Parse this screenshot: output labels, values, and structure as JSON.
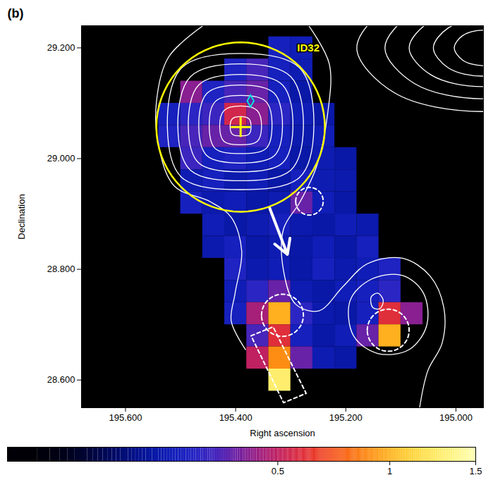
{
  "chart_data": {
    "type": "heatmap",
    "title": "(b)",
    "x_label": "Right ascension",
    "y_label": "Declination",
    "xlim": [
      195.68,
      194.95
    ],
    "ylim": [
      28.55,
      29.24
    ],
    "xticks": [
      {
        "value": 195.6,
        "label": "195.600"
      },
      {
        "value": 195.4,
        "label": "195.400"
      },
      {
        "value": 195.2,
        "label": "195.200"
      },
      {
        "value": 195.0,
        "label": "195.000"
      }
    ],
    "yticks": [
      {
        "value": 28.6,
        "label": "28.600"
      },
      {
        "value": 28.8,
        "label": "28.800"
      },
      {
        "value": 29.0,
        "label": "29.000"
      },
      {
        "value": 29.2,
        "label": "29.200"
      }
    ],
    "colorbar": {
      "range": [
        0,
        1.5
      ],
      "ticks": [
        0.5,
        1,
        1.5
      ],
      "colors": [
        "#000000",
        "#000010",
        "#0010a0",
        "#2030e0",
        "#d01060",
        "#ff5000",
        "#ffe020",
        "#ffffb0"
      ]
    },
    "cells": [
      [
        195.32,
        29.2,
        0.2
      ],
      [
        195.28,
        29.2,
        0.18
      ],
      [
        195.4,
        29.16,
        0.22
      ],
      [
        195.36,
        29.16,
        0.3
      ],
      [
        195.32,
        29.16,
        0.2
      ],
      [
        195.28,
        29.16,
        0.17
      ],
      [
        195.48,
        29.12,
        0.4
      ],
      [
        195.44,
        29.12,
        0.22
      ],
      [
        195.4,
        29.12,
        0.3
      ],
      [
        195.36,
        29.12,
        0.35
      ],
      [
        195.32,
        29.12,
        0.2
      ],
      [
        195.28,
        29.12,
        0.15
      ],
      [
        195.52,
        29.08,
        0.2
      ],
      [
        195.48,
        29.08,
        0.25
      ],
      [
        195.44,
        29.08,
        0.28
      ],
      [
        195.4,
        29.08,
        0.55
      ],
      [
        195.36,
        29.08,
        0.4
      ],
      [
        195.32,
        29.08,
        0.25
      ],
      [
        195.28,
        29.08,
        0.18
      ],
      [
        195.24,
        29.08,
        0.15
      ],
      [
        195.52,
        29.04,
        0.22
      ],
      [
        195.48,
        29.04,
        0.3
      ],
      [
        195.44,
        29.04,
        0.35
      ],
      [
        195.4,
        29.04,
        0.35
      ],
      [
        195.36,
        29.04,
        0.28
      ],
      [
        195.32,
        29.04,
        0.2
      ],
      [
        195.28,
        29.04,
        0.16
      ],
      [
        195.24,
        29.04,
        0.18
      ],
      [
        195.48,
        29.0,
        0.28
      ],
      [
        195.44,
        29.0,
        0.2
      ],
      [
        195.4,
        29.0,
        0.22
      ],
      [
        195.36,
        29.0,
        0.18
      ],
      [
        195.32,
        29.0,
        0.2
      ],
      [
        195.28,
        29.0,
        0.15
      ],
      [
        195.24,
        29.0,
        0.17
      ],
      [
        195.2,
        29.0,
        0.15
      ],
      [
        195.48,
        28.96,
        0.17
      ],
      [
        195.44,
        28.96,
        0.2
      ],
      [
        195.4,
        28.96,
        0.16
      ],
      [
        195.36,
        28.96,
        0.18
      ],
      [
        195.32,
        28.96,
        0.15
      ],
      [
        195.28,
        28.96,
        0.2
      ],
      [
        195.24,
        28.96,
        0.17
      ],
      [
        195.2,
        28.96,
        0.16
      ],
      [
        195.48,
        28.92,
        0.2
      ],
      [
        195.44,
        28.92,
        0.16
      ],
      [
        195.4,
        28.92,
        0.18
      ],
      [
        195.36,
        28.92,
        0.15
      ],
      [
        195.32,
        28.92,
        0.17
      ],
      [
        195.28,
        28.92,
        0.35
      ],
      [
        195.24,
        28.92,
        0.18
      ],
      [
        195.2,
        28.92,
        0.15
      ],
      [
        195.44,
        28.88,
        0.18
      ],
      [
        195.4,
        28.88,
        0.15
      ],
      [
        195.36,
        28.88,
        0.17
      ],
      [
        195.32,
        28.88,
        0.2
      ],
      [
        195.28,
        28.88,
        0.16
      ],
      [
        195.24,
        28.88,
        0.15
      ],
      [
        195.2,
        28.88,
        0.18
      ],
      [
        195.16,
        28.88,
        0.16
      ],
      [
        195.44,
        28.84,
        0.16
      ],
      [
        195.4,
        28.84,
        0.2
      ],
      [
        195.36,
        28.84,
        0.15
      ],
      [
        195.32,
        28.84,
        0.17
      ],
      [
        195.28,
        28.84,
        0.15
      ],
      [
        195.24,
        28.84,
        0.18
      ],
      [
        195.2,
        28.84,
        0.15
      ],
      [
        195.16,
        28.84,
        0.2
      ],
      [
        195.4,
        28.8,
        0.22
      ],
      [
        195.36,
        28.8,
        0.16
      ],
      [
        195.32,
        28.8,
        0.18
      ],
      [
        195.28,
        28.8,
        0.15
      ],
      [
        195.24,
        28.8,
        0.2
      ],
      [
        195.2,
        28.8,
        0.16
      ],
      [
        195.16,
        28.8,
        0.18
      ],
      [
        195.12,
        28.8,
        0.22
      ],
      [
        195.4,
        28.76,
        0.18
      ],
      [
        195.36,
        28.76,
        0.25
      ],
      [
        195.32,
        28.76,
        0.35
      ],
      [
        195.28,
        28.76,
        0.17
      ],
      [
        195.24,
        28.76,
        0.15
      ],
      [
        195.2,
        28.76,
        0.18
      ],
      [
        195.16,
        28.76,
        0.2
      ],
      [
        195.12,
        28.76,
        0.25
      ],
      [
        195.4,
        28.72,
        0.2
      ],
      [
        195.36,
        28.72,
        0.45
      ],
      [
        195.32,
        28.72,
        1.0
      ],
      [
        195.28,
        28.72,
        0.25
      ],
      [
        195.24,
        28.72,
        0.16
      ],
      [
        195.2,
        28.72,
        0.15
      ],
      [
        195.16,
        28.72,
        0.2
      ],
      [
        195.12,
        28.72,
        0.6
      ],
      [
        195.08,
        28.72,
        0.4
      ],
      [
        195.36,
        28.68,
        0.3
      ],
      [
        195.32,
        28.68,
        0.6
      ],
      [
        195.28,
        28.68,
        0.2
      ],
      [
        195.24,
        28.68,
        0.15
      ],
      [
        195.2,
        28.68,
        0.18
      ],
      [
        195.16,
        28.68,
        0.35
      ],
      [
        195.12,
        28.68,
        1.0
      ],
      [
        195.36,
        28.64,
        0.5
      ],
      [
        195.32,
        28.64,
        0.9
      ],
      [
        195.28,
        28.64,
        0.35
      ],
      [
        195.24,
        28.64,
        0.17
      ],
      [
        195.2,
        28.64,
        0.15
      ],
      [
        195.32,
        28.6,
        1.3
      ]
    ],
    "contours": [
      [
        [
          195.372,
          29.057
        ],
        [
          195.376,
          29.044
        ],
        [
          195.391,
          29.041
        ],
        [
          195.406,
          29.044
        ],
        [
          195.41,
          29.057
        ],
        [
          195.406,
          29.072
        ],
        [
          195.391,
          29.076
        ],
        [
          195.376,
          29.072
        ]
      ],
      [
        [
          195.353,
          29.057
        ],
        [
          195.361,
          29.031
        ],
        [
          195.391,
          29.025
        ],
        [
          195.421,
          29.031
        ],
        [
          195.429,
          29.057
        ],
        [
          195.421,
          29.087
        ],
        [
          195.391,
          29.095
        ],
        [
          195.361,
          29.087
        ]
      ],
      [
        [
          195.334,
          29.057
        ],
        [
          195.345,
          29.018
        ],
        [
          195.391,
          29.009
        ],
        [
          195.437,
          29.018
        ],
        [
          195.448,
          29.057
        ],
        [
          195.437,
          29.103
        ],
        [
          195.391,
          29.114
        ],
        [
          195.345,
          29.103
        ]
      ],
      [
        [
          195.315,
          29.057
        ],
        [
          195.33,
          29.005
        ],
        [
          195.391,
          28.992
        ],
        [
          195.452,
          29.005
        ],
        [
          195.467,
          29.057
        ],
        [
          195.452,
          29.118
        ],
        [
          195.391,
          29.133
        ],
        [
          195.33,
          29.118
        ]
      ],
      [
        [
          195.296,
          29.057
        ],
        [
          195.315,
          28.992
        ],
        [
          195.391,
          28.976
        ],
        [
          195.467,
          28.992
        ],
        [
          195.486,
          29.057
        ],
        [
          195.467,
          29.133
        ],
        [
          195.391,
          29.152
        ],
        [
          195.315,
          29.133
        ]
      ],
      [
        [
          195.277,
          29.057
        ],
        [
          195.3,
          28.979
        ],
        [
          195.391,
          28.96
        ],
        [
          195.482,
          28.979
        ],
        [
          195.505,
          29.057
        ],
        [
          195.482,
          29.148
        ],
        [
          195.391,
          29.171
        ],
        [
          195.3,
          29.148
        ]
      ],
      [
        [
          195.258,
          29.057
        ],
        [
          195.284,
          28.966
        ],
        [
          195.391,
          28.944
        ],
        [
          195.498,
          28.966
        ],
        [
          195.524,
          29.057
        ],
        [
          195.498,
          29.164
        ],
        [
          195.391,
          29.19
        ],
        [
          195.284,
          29.164
        ]
      ],
      [
        [
          195.192,
          28.744
        ],
        [
          195.154,
          28.782
        ],
        [
          195.097,
          28.789
        ],
        [
          195.059,
          28.757
        ],
        [
          195.053,
          28.699
        ],
        [
          195.085,
          28.655
        ],
        [
          195.142,
          28.648
        ],
        [
          195.186,
          28.68
        ]
      ],
      [
        [
          195.154,
          28.75
        ],
        [
          195.142,
          28.757
        ],
        [
          195.132,
          28.744
        ],
        [
          195.138,
          28.729
        ],
        [
          195.151,
          28.731
        ]
      ],
      [
        [
          194.901,
          29.2
        ],
        [
          194.916,
          29.178
        ],
        [
          194.952,
          29.168
        ],
        [
          194.988,
          29.178
        ],
        [
          195.003,
          29.2
        ],
        [
          194.988,
          29.222
        ],
        [
          194.952,
          29.232
        ],
        [
          194.916,
          29.222
        ]
      ],
      [
        [
          194.863,
          29.2
        ],
        [
          194.89,
          29.164
        ],
        [
          194.952,
          29.149
        ],
        [
          195.014,
          29.164
        ],
        [
          195.041,
          29.2
        ],
        [
          195.014,
          29.236
        ],
        [
          194.952,
          29.251
        ],
        [
          194.89,
          29.236
        ]
      ],
      [
        [
          194.819,
          29.2
        ],
        [
          194.859,
          29.151
        ],
        [
          194.952,
          29.13
        ],
        [
          195.045,
          29.151
        ],
        [
          195.085,
          29.2
        ],
        [
          195.045,
          29.249
        ],
        [
          194.952,
          29.27
        ],
        [
          194.859,
          29.249
        ]
      ],
      [
        [
          194.775,
          29.2
        ],
        [
          194.828,
          29.136
        ],
        [
          194.952,
          29.108
        ],
        [
          195.076,
          29.136
        ],
        [
          195.129,
          29.2
        ],
        [
          195.076,
          29.264
        ],
        [
          194.952,
          29.292
        ],
        [
          194.828,
          29.264
        ]
      ],
      [
        [
          194.724,
          29.2
        ],
        [
          194.792,
          29.119
        ],
        [
          194.952,
          29.085
        ],
        [
          195.112,
          29.119
        ],
        [
          195.18,
          29.2
        ],
        [
          195.112,
          29.281
        ],
        [
          194.952,
          29.315
        ],
        [
          194.792,
          29.281
        ]
      ]
    ],
    "open_contours": [
      [
        [
          195.458,
          29.241
        ],
        [
          195.522,
          29.183
        ],
        [
          195.544,
          29.101
        ],
        [
          195.539,
          29.018
        ],
        [
          195.511,
          28.95
        ],
        [
          195.446,
          28.922
        ],
        [
          195.408,
          28.894
        ],
        [
          195.389,
          28.833
        ],
        [
          195.401,
          28.757
        ],
        [
          195.408,
          28.706
        ],
        [
          195.382,
          28.655
        ]
      ],
      [
        [
          195.268,
          29.241
        ],
        [
          195.23,
          29.171
        ],
        [
          195.233,
          29.081
        ],
        [
          195.253,
          28.986
        ],
        [
          195.283,
          28.922
        ],
        [
          195.313,
          28.873
        ],
        [
          195.313,
          28.797
        ],
        [
          195.291,
          28.737
        ],
        [
          195.249,
          28.725
        ],
        [
          195.205,
          28.769
        ],
        [
          195.161,
          28.81
        ],
        [
          195.097,
          28.82
        ],
        [
          195.047,
          28.788
        ],
        [
          195.022,
          28.731
        ],
        [
          195.025,
          28.667
        ],
        [
          195.051,
          28.617
        ],
        [
          195.066,
          28.55
        ]
      ]
    ],
    "source_circle": {
      "x": 195.391,
      "y": 29.057,
      "radius": 0.153,
      "color": "#ffff00"
    },
    "source_position": {
      "x": 195.391,
      "y": 29.057,
      "color": "#ffff00",
      "marker": "plus"
    },
    "counterpart": {
      "x": 195.373,
      "y": 29.104,
      "color": "#00e0e0",
      "marker": "diamond"
    },
    "annotations": [
      {
        "text": "ID32",
        "x": 195.268,
        "y": 29.2,
        "color": "#ffff00"
      }
    ],
    "regions": [
      {
        "x": 195.266,
        "y": 28.923,
        "radius": 0.025
      },
      {
        "x": 195.315,
        "y": 28.717,
        "radius": 0.038
      },
      {
        "x": 195.123,
        "y": 28.69,
        "radius": 0.038
      }
    ],
    "box": [
      [
        195.372,
        28.68
      ],
      [
        195.332,
        28.696
      ],
      [
        195.272,
        28.576
      ],
      [
        195.313,
        28.559
      ]
    ],
    "arrow": {
      "x1": 195.338,
      "y1": 28.91,
      "x2": 195.306,
      "y2": 28.827
    }
  }
}
